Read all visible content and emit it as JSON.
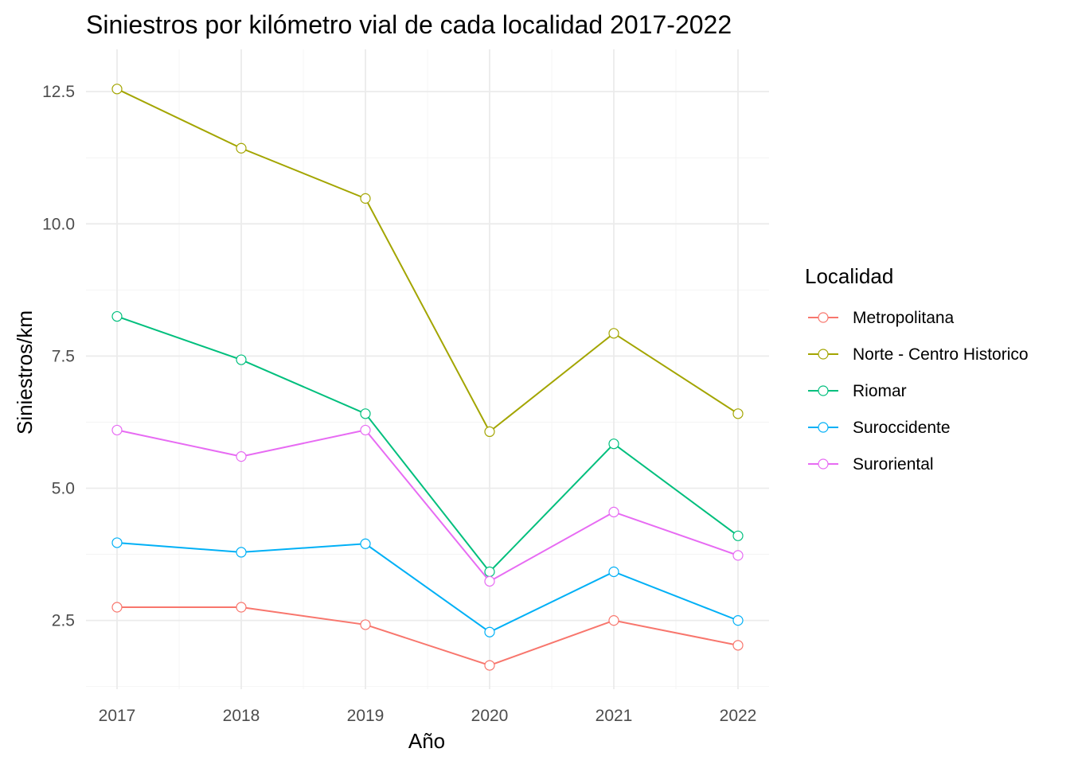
{
  "chart_data": {
    "type": "line",
    "title": "Siniestros por kilómetro vial de cada localidad 2017-2022",
    "xlabel": "Año",
    "ylabel": "Siniestros/km",
    "x": [
      2017,
      2018,
      2019,
      2020,
      2021,
      2022
    ],
    "x_tick_labels": [
      "2017",
      "2018",
      "2019",
      "2020",
      "2021",
      "2022"
    ],
    "y_ticks": [
      2.5,
      5.0,
      7.5,
      10.0,
      12.5
    ],
    "y_tick_labels": [
      "2.5",
      "5.0",
      "7.5",
      "10.0",
      "12.5"
    ],
    "ylim": [
      1.2,
      13.3
    ],
    "grid": true,
    "legend": {
      "title": "Localidad",
      "placement": "right"
    },
    "series": [
      {
        "name": "Metropolitana",
        "color": "#F8766D",
        "values": [
          2.75,
          2.75,
          2.42,
          1.65,
          2.5,
          2.03
        ]
      },
      {
        "name": "Norte - Centro Historico",
        "color": "#A3A500",
        "values": [
          12.55,
          11.43,
          10.48,
          6.07,
          7.93,
          6.41
        ]
      },
      {
        "name": "Riomar",
        "color": "#00BF7D",
        "values": [
          8.25,
          7.43,
          6.41,
          3.42,
          5.84,
          4.1
        ]
      },
      {
        "name": "Suroccidente",
        "color": "#00B0F6",
        "values": [
          3.97,
          3.79,
          3.95,
          2.28,
          3.42,
          2.5
        ]
      },
      {
        "name": "Suroriental",
        "color": "#E76BF3",
        "values": [
          6.1,
          5.6,
          6.1,
          3.24,
          4.55,
          3.73
        ]
      }
    ]
  }
}
